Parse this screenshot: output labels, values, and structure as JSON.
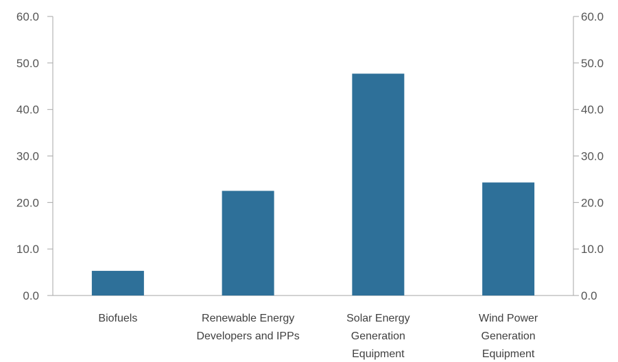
{
  "chart_data": {
    "type": "bar",
    "categories": [
      [
        "Biofuels"
      ],
      [
        "Renewable Energy",
        "Developers and IPPs"
      ],
      [
        "Solar Energy",
        "Generation",
        "Equipment"
      ],
      [
        "Wind Power",
        "Generation",
        "Equipment"
      ]
    ],
    "values": [
      5.3,
      22.5,
      47.7,
      24.3
    ],
    "ylim": [
      0,
      60
    ],
    "yticks": [
      "0.0",
      "10.0",
      "20.0",
      "30.0",
      "40.0",
      "50.0",
      "60.0"
    ],
    "secondary_yticks": [
      "0.0",
      "10.0",
      "20.0",
      "30.0",
      "40.0",
      "50.0",
      "60.0"
    ],
    "title": "",
    "xlabel": "",
    "ylabel": "",
    "bar_color": "#2e7099",
    "grid": false,
    "legend": "none"
  }
}
